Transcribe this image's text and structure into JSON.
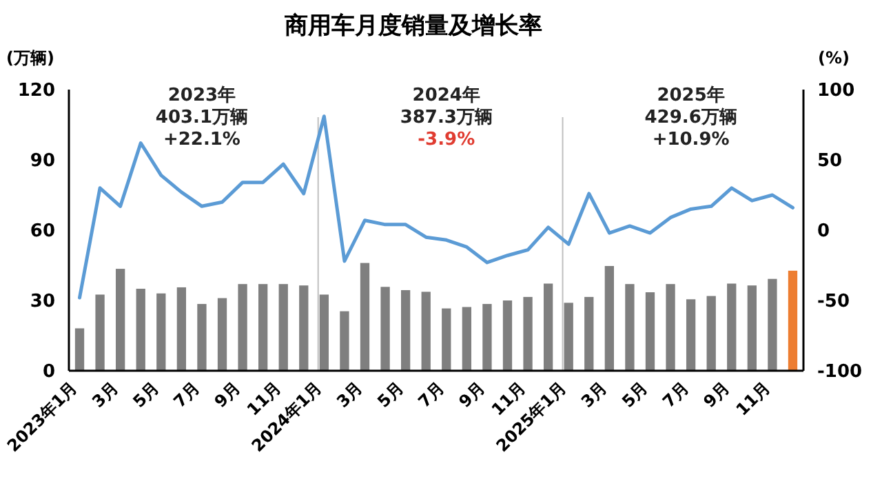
{
  "chart_data": {
    "type": "bar",
    "title": "商用车月度销量及增长率",
    "ylabel": "(万辆)",
    "y2label": "(%)",
    "categories": [
      "2023年1月",
      null,
      "3月",
      null,
      "5月",
      null,
      "7月",
      null,
      "9月",
      null,
      "11月",
      null,
      "2024年1月",
      null,
      "3月",
      null,
      "5月",
      null,
      "7月",
      null,
      "9月",
      null,
      "11月",
      null,
      "2025年1月",
      null,
      "3月",
      null,
      "5月",
      null,
      "7月",
      null,
      "9月",
      null,
      "11月",
      null
    ],
    "series": [
      {
        "colors": [
          "#7f7f7f",
          "#7f7f7f",
          "#7f7f7f",
          "#7f7f7f",
          "#7f7f7f",
          "#7f7f7f",
          "#7f7f7f",
          "#7f7f7f",
          "#7f7f7f",
          "#7f7f7f",
          "#7f7f7f",
          "#7f7f7f",
          "#7f7f7f",
          "#7f7f7f",
          "#7f7f7f",
          "#7f7f7f",
          "#7f7f7f",
          "#7f7f7f",
          "#7f7f7f",
          "#7f7f7f",
          "#7f7f7f",
          "#7f7f7f",
          "#7f7f7f",
          "#7f7f7f",
          "#7f7f7f",
          "#7f7f7f",
          "#7f7f7f",
          "#7f7f7f",
          "#7f7f7f",
          "#7f7f7f",
          "#7f7f7f",
          "#7f7f7f",
          "#7f7f7f",
          "#7f7f7f",
          "#7f7f7f",
          "#ed7d31"
        ],
        "values": [
          18.1,
          32.5,
          43.5,
          35,
          33,
          35.6,
          28.5,
          31,
          37,
          37,
          37,
          36.4,
          32.5,
          25.4,
          46,
          35.8,
          34.4,
          33.7,
          26.6,
          27.2,
          28.5,
          30,
          31.5,
          37.2,
          29,
          31.5,
          44.7,
          37,
          33.5,
          37,
          30.5,
          31.9,
          37.2,
          36.4,
          39.2,
          42.7
        ]
      },
      {
        "type": "line",
        "axis": "y2",
        "color": "#5b9bd5",
        "values": [
          -48,
          30,
          17,
          62,
          39,
          27,
          17,
          20,
          34,
          34,
          47,
          26,
          81,
          -22,
          7,
          4,
          4,
          -5,
          -7,
          -12,
          -23,
          -18,
          -14,
          2,
          -10,
          26,
          -2,
          3,
          -2,
          9,
          15,
          17,
          30,
          21,
          25,
          16
        ]
      }
    ],
    "ylim": [
      0,
      120
    ],
    "yticks": [
      0,
      30,
      60,
      90,
      120
    ],
    "y2lim": [
      -100,
      100
    ],
    "y2ticks": [
      -100,
      -50,
      0,
      50,
      100
    ],
    "ref_lines": [
      {
        "axis": "x",
        "value": "2024年1月",
        "color": "#bfbfbf"
      },
      {
        "axis": "x",
        "value": "2025年1月",
        "color": "#bfbfbf"
      }
    ],
    "annotations": [
      "2023年",
      "403.1万辆",
      "+22.1%",
      "2024年",
      "387.3万辆",
      "-3.9%",
      "2025年",
      "429.6万辆",
      "+10.9%"
    ],
    "grid": false,
    "marker": "none",
    "line_style": "solid"
  }
}
